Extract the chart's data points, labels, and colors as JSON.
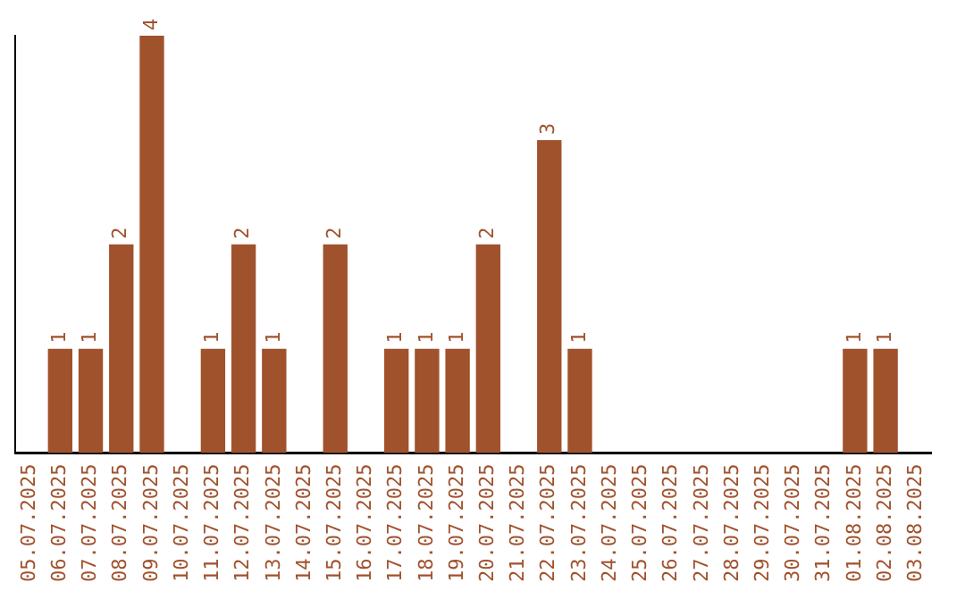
{
  "chart_data": {
    "type": "bar",
    "categories": [
      "05.07.2025",
      "06.07.2025",
      "07.07.2025",
      "08.07.2025",
      "09.07.2025",
      "10.07.2025",
      "11.07.2025",
      "12.07.2025",
      "13.07.2025",
      "14.07.2025",
      "15.07.2025",
      "16.07.2025",
      "17.07.2025",
      "18.07.2025",
      "19.07.2025",
      "20.07.2025",
      "21.07.2025",
      "22.07.2025",
      "23.07.2025",
      "24.07.2025",
      "25.07.2025",
      "26.07.2025",
      "27.07.2025",
      "28.07.2025",
      "29.07.2025",
      "30.07.2025",
      "31.07.2025",
      "01.08.2025",
      "02.08.2025",
      "03.08.2025"
    ],
    "values": [
      0,
      1,
      1,
      2,
      4,
      0,
      1,
      2,
      1,
      0,
      2,
      0,
      1,
      1,
      1,
      2,
      0,
      3,
      1,
      0,
      0,
      0,
      0,
      0,
      0,
      0,
      0,
      1,
      1,
      0
    ],
    "value_labels": [
      null,
      "1",
      "1",
      "2",
      "4",
      null,
      "1",
      "2",
      "1",
      null,
      "2",
      null,
      "1",
      "1",
      "1",
      "2",
      null,
      "3",
      "1",
      null,
      null,
      null,
      null,
      null,
      null,
      null,
      null,
      "1",
      "1",
      null
    ],
    "color": "#a0522d",
    "grid": false,
    "legend": false,
    "tick_labels": "x"
  }
}
